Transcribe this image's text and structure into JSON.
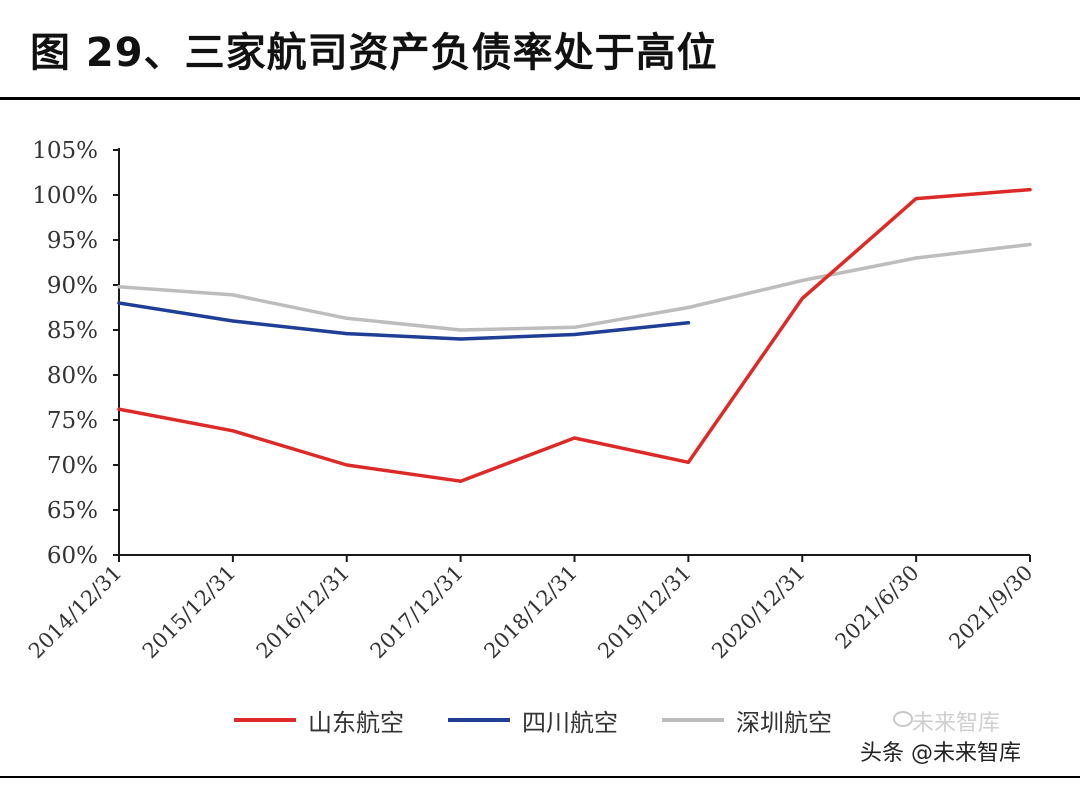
{
  "title": "图 29、三家航司资产负债率处于高位",
  "watermark": {
    "text": "头条 @未来智库",
    "faint_text": "未来智库"
  },
  "chart_data": {
    "type": "line",
    "x": [
      "2014/12/31",
      "2015/12/31",
      "2016/12/31",
      "2017/12/31",
      "2018/12/31",
      "2019/12/31",
      "2020/12/31",
      "2021/6/30",
      "2021/9/30"
    ],
    "y_ticks": [
      "60%",
      "65%",
      "70%",
      "75%",
      "80%",
      "85%",
      "90%",
      "95%",
      "100%",
      "105%"
    ],
    "ylim": [
      60,
      105
    ],
    "title": "",
    "xlabel": "",
    "ylabel": "",
    "grid": false,
    "legend_position": "bottom",
    "series": [
      {
        "name": "山东航空",
        "color": "#dd2a27",
        "values": [
          76.2,
          73.8,
          70.0,
          68.2,
          73.0,
          70.3,
          88.5,
          99.6,
          100.6
        ]
      },
      {
        "name": "四川航空",
        "color": "#1f3e96",
        "values": [
          88.0,
          86.0,
          84.6,
          84.0,
          84.5,
          85.8,
          null,
          null,
          null
        ]
      },
      {
        "name": "深圳航空",
        "color": "#bdbdbd",
        "values": [
          89.8,
          88.9,
          86.3,
          85.0,
          85.3,
          87.5,
          90.5,
          93.0,
          94.5
        ]
      }
    ]
  }
}
